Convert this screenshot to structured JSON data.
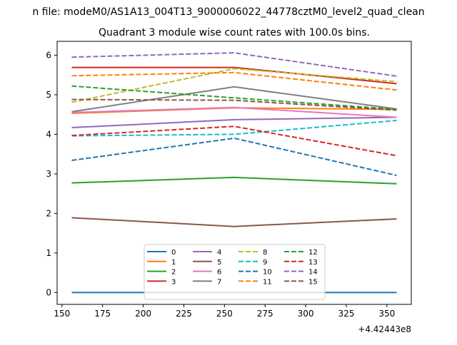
{
  "suptitle": "n file: modeM0/AS1A13_004T13_9000006022_44778cztM0_level2_quad_clean",
  "chart_data": {
    "type": "line",
    "title": "Quadrant 3 module wise count rates with 100.0s bins.",
    "xlabel": "",
    "ylabel": "",
    "x_offset_label": "+4.42443e8",
    "x": [
      156,
      256,
      356
    ],
    "xlim": [
      147,
      365
    ],
    "ylim": [
      -0.3,
      6.35
    ],
    "xticks": [
      150,
      175,
      200,
      225,
      250,
      275,
      300,
      325,
      350
    ],
    "yticks": [
      0,
      1,
      2,
      3,
      4,
      5,
      6
    ],
    "grid": false,
    "legend": {
      "placement": "lower center",
      "columns": 4
    },
    "series": [
      {
        "name": "0",
        "color": "#1f77b4",
        "dash": "solid",
        "values": [
          0.0,
          0.0,
          0.0
        ]
      },
      {
        "name": "1",
        "color": "#ff7f0e",
        "dash": "solid",
        "values": [
          4.53,
          4.67,
          4.63
        ]
      },
      {
        "name": "2",
        "color": "#2ca02c",
        "dash": "solid",
        "values": [
          2.77,
          2.91,
          2.75
        ]
      },
      {
        "name": "3",
        "color": "#d62728",
        "dash": "solid",
        "values": [
          5.69,
          5.69,
          5.28
        ]
      },
      {
        "name": "4",
        "color": "#9467bd",
        "dash": "solid",
        "values": [
          4.17,
          4.37,
          4.43
        ]
      },
      {
        "name": "5",
        "color": "#8c564b",
        "dash": "solid",
        "values": [
          1.89,
          1.67,
          1.86
        ]
      },
      {
        "name": "6",
        "color": "#e377c2",
        "dash": "solid",
        "values": [
          4.55,
          4.68,
          4.43
        ]
      },
      {
        "name": "7",
        "color": "#7f7f7f",
        "dash": "solid",
        "values": [
          4.57,
          5.2,
          4.64
        ]
      },
      {
        "name": "8",
        "color": "#bcbd22",
        "dash": "dashed",
        "values": [
          4.81,
          5.66,
          5.33
        ]
      },
      {
        "name": "9",
        "color": "#17becf",
        "dash": "dashed",
        "values": [
          3.96,
          4.0,
          4.35
        ]
      },
      {
        "name": "10",
        "color": "#1f77b4",
        "dash": "dashed",
        "values": [
          3.34,
          3.9,
          2.96
        ]
      },
      {
        "name": "11",
        "color": "#ff7f0e",
        "dash": "dashed",
        "values": [
          5.48,
          5.56,
          5.12
        ]
      },
      {
        "name": "12",
        "color": "#2ca02c",
        "dash": "dashed",
        "values": [
          5.22,
          4.92,
          4.63
        ]
      },
      {
        "name": "13",
        "color": "#d62728",
        "dash": "dashed",
        "values": [
          3.97,
          4.2,
          3.46
        ]
      },
      {
        "name": "14",
        "color": "#9467bd",
        "dash": "dashed",
        "values": [
          5.95,
          6.06,
          5.47
        ]
      },
      {
        "name": "15",
        "color": "#8c564b",
        "dash": "dashed",
        "values": [
          4.88,
          4.86,
          4.61
        ]
      }
    ]
  }
}
